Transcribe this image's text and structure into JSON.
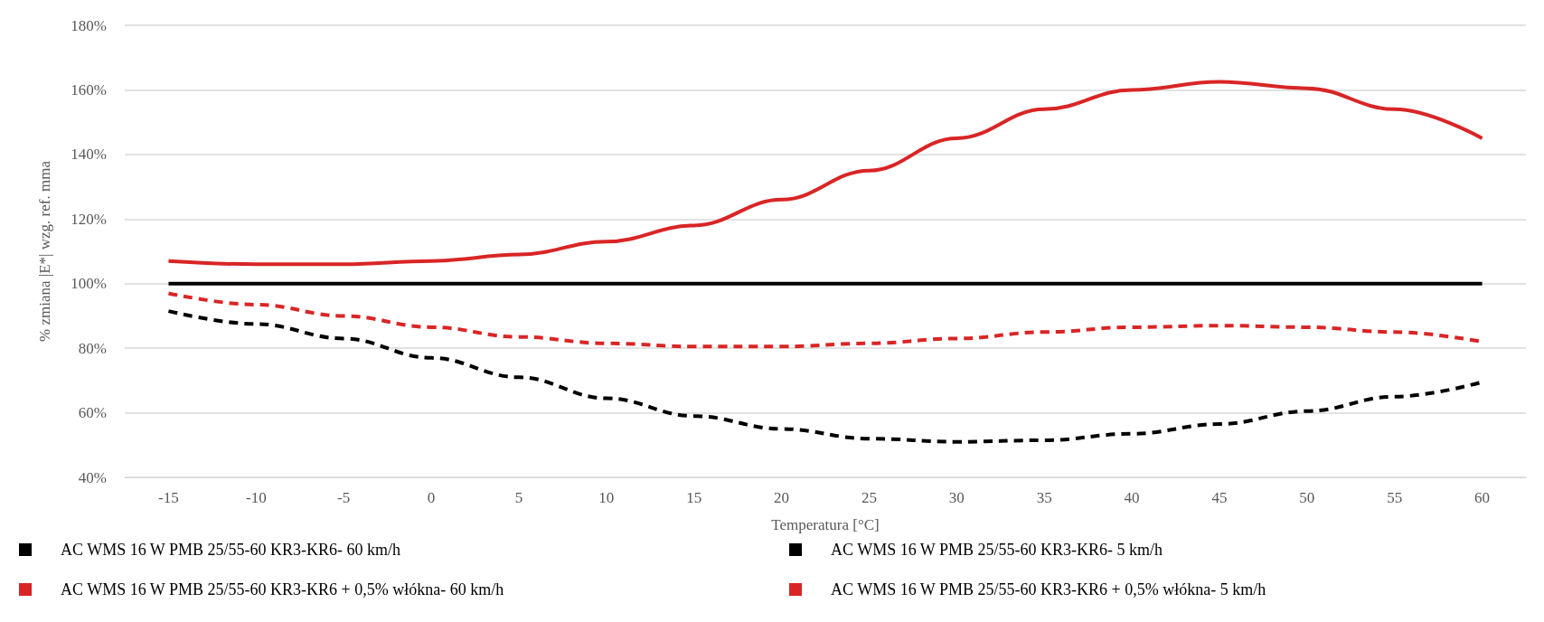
{
  "chart_data": {
    "type": "line",
    "xlabel": "Temperatura [°C]",
    "ylabel": "% zmiana |E*| wzg. ref. mma",
    "categories": [
      "-15",
      "-10",
      "-5",
      "0",
      "5",
      "10",
      "15",
      "20",
      "25",
      "30",
      "35",
      "40",
      "45",
      "50",
      "55",
      "60"
    ],
    "series": [
      {
        "name": "AC WMS 16 W PMB 25/55-60 KR3-KR6- 60 km/h",
        "color": "#000000",
        "line_style": "solid",
        "values": [
          100,
          100,
          100,
          100,
          100,
          100,
          100,
          100,
          100,
          100,
          100,
          100,
          100,
          100,
          100,
          100
        ]
      },
      {
        "name": "AC WMS 16 W PMB 25/55-60 KR3-KR6- 5 km/h",
        "color": "#000000",
        "line_style": "dashed",
        "values": [
          91.5,
          87.5,
          83,
          77,
          71,
          64.5,
          59,
          55,
          52,
          51,
          51.5,
          53.5,
          56.5,
          60.5,
          65,
          69.5
        ]
      },
      {
        "name": "AC WMS 16 W PMB 25/55-60 KR3-KR6 + 0,5% włókna- 60 km/h",
        "color": "#d92525",
        "line_style": "solid",
        "values": [
          107,
          106,
          106,
          107,
          109,
          113,
          118,
          126,
          135,
          145,
          154,
          160,
          162.5,
          160.5,
          154,
          145
        ]
      },
      {
        "name": "AC WMS 16 W PMB 25/55-60 KR3-KR6 + 0,5% włókna- 5 km/h",
        "color": "#d92525",
        "line_style": "dashed",
        "values": [
          97,
          93.5,
          90,
          86.5,
          83.5,
          81.5,
          80.5,
          80.5,
          81.5,
          83,
          85,
          86.5,
          87,
          86.5,
          85,
          82
        ]
      }
    ],
    "ylim": [
      40,
      180
    ],
    "yticks": [
      {
        "value": 40,
        "label": "40%"
      },
      {
        "value": 60,
        "label": "60%"
      },
      {
        "value": 80,
        "label": "80%"
      },
      {
        "value": 100,
        "label": "100%"
      },
      {
        "value": 120,
        "label": "120%"
      },
      {
        "value": 140,
        "label": "140%"
      },
      {
        "value": 160,
        "label": "160%"
      },
      {
        "value": 180,
        "label": "180%"
      }
    ],
    "grid": "y",
    "legend": "bottom",
    "marker": "none"
  }
}
